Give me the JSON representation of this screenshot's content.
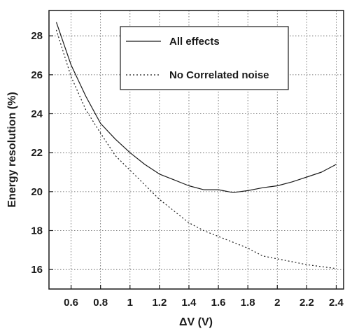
{
  "chart_data": {
    "type": "line",
    "xlabel": "ΔV (V)",
    "ylabel": "Energy resolution (%)",
    "xlim": [
      0.45,
      2.45
    ],
    "ylim": [
      15,
      29.3
    ],
    "x_ticks": [
      0.6,
      0.8,
      1,
      1.2,
      1.4,
      1.6,
      1.8,
      2,
      2.2,
      2.4
    ],
    "x_tick_labels": [
      "0.6",
      "0.8",
      "1",
      "1.2",
      "1.4",
      "1.6",
      "1.8",
      "2",
      "2.2",
      "2.4"
    ],
    "y_ticks": [
      16,
      18,
      20,
      22,
      24,
      26,
      28
    ],
    "y_tick_labels": [
      "16",
      "18",
      "20",
      "22",
      "24",
      "26",
      "28"
    ],
    "grid": true,
    "legend_position": "top-right",
    "series": [
      {
        "name": "All effects",
        "line_style": "solid",
        "color": "#1a1a1a",
        "x": [
          0.5,
          0.6,
          0.7,
          0.8,
          0.9,
          1.0,
          1.1,
          1.2,
          1.3,
          1.4,
          1.5,
          1.6,
          1.7,
          1.8,
          1.9,
          2.0,
          2.1,
          2.2,
          2.3,
          2.4
        ],
        "y": [
          28.7,
          26.5,
          24.9,
          23.5,
          22.7,
          22.0,
          21.4,
          20.9,
          20.6,
          20.3,
          20.1,
          20.1,
          19.95,
          20.05,
          20.2,
          20.3,
          20.5,
          20.75,
          21.0,
          21.4
        ]
      },
      {
        "name": "No Correlated noise",
        "line_style": "dotted",
        "color": "#1a1a1a",
        "x": [
          0.5,
          0.6,
          0.7,
          0.8,
          0.9,
          1.0,
          1.1,
          1.2,
          1.3,
          1.4,
          1.5,
          1.6,
          1.7,
          1.8,
          1.9,
          2.0,
          2.1,
          2.2,
          2.3,
          2.4
        ],
        "y": [
          28.3,
          25.9,
          24.2,
          23.0,
          21.85,
          21.1,
          20.35,
          19.6,
          19.0,
          18.4,
          18.0,
          17.7,
          17.4,
          17.1,
          16.7,
          16.55,
          16.4,
          16.25,
          16.15,
          16.05
        ]
      }
    ]
  }
}
